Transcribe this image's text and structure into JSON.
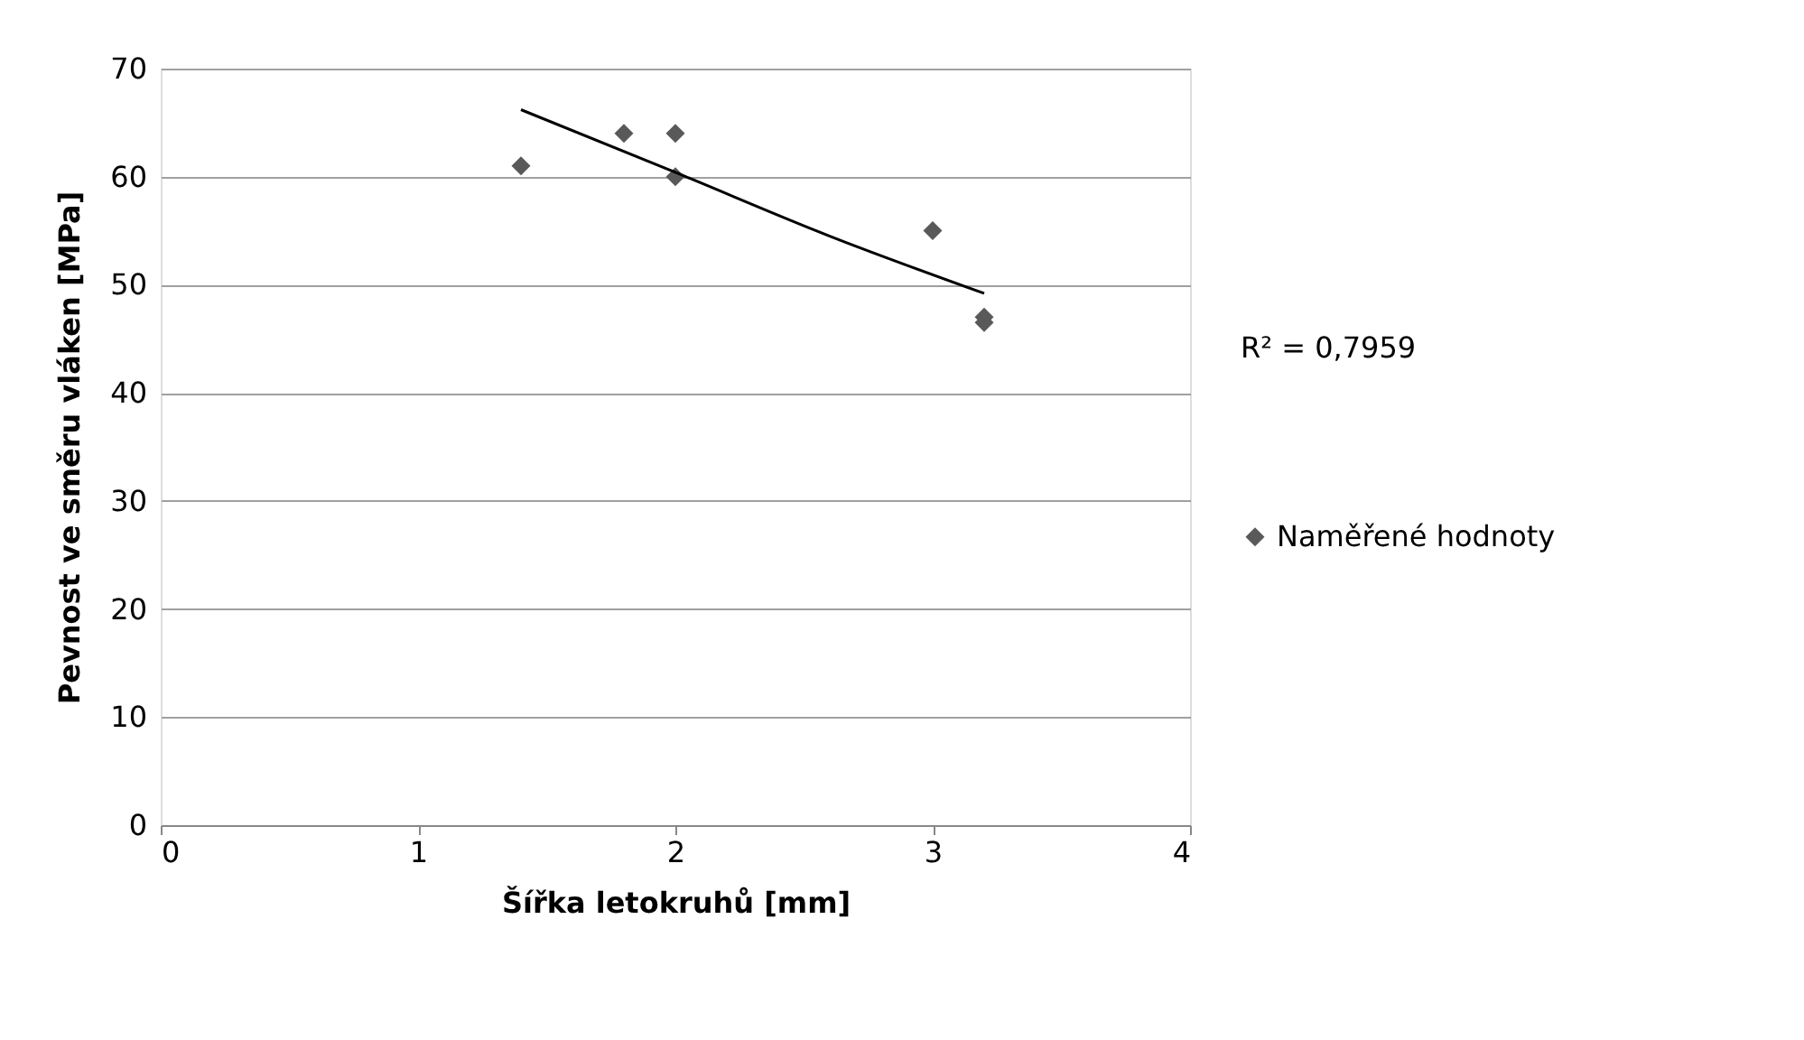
{
  "chart_data": {
    "type": "scatter",
    "xlabel": "Šířka letokruhů [mm]",
    "ylabel": "Pevnost ve směru vláken [MPa]",
    "xlim": [
      0,
      4
    ],
    "xticks": [
      0,
      1,
      2,
      3,
      4
    ],
    "ylim": [
      0,
      70
    ],
    "yticks": [
      0,
      10,
      20,
      30,
      40,
      50,
      60,
      70
    ],
    "grid": "y",
    "legend": "right",
    "series": [
      {
        "name": "Naměřené hodnoty",
        "color": "#595959",
        "marker": "diamond",
        "x": [
          1.4,
          1.8,
          2.0,
          2.0,
          3.0,
          3.2,
          3.2
        ],
        "values": [
          61,
          64,
          64,
          60,
          55,
          47,
          46.5
        ]
      },
      {
        "type": "line",
        "color": "#000000",
        "x": [
          1.4,
          2.0,
          2.6,
          3.2
        ],
        "values": [
          66.2,
          60.4,
          54.5,
          49.2
        ]
      }
    ],
    "annotations": [
      "R² = 0,7959"
    ]
  }
}
